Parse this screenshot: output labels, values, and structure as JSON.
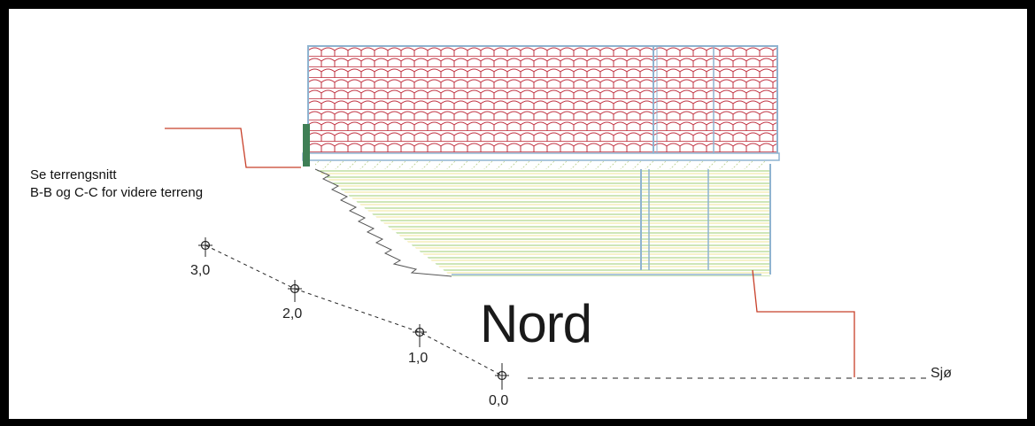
{
  "drawing": {
    "note_line_1": "Se terrengsnitt",
    "note_line_2": "B-B og C-C for videre terreng",
    "view_title": "Nord",
    "sea_label": "Sjø",
    "levels": [
      {
        "label": "3,0",
        "value": 3.0
      },
      {
        "label": "2,0",
        "value": 2.0
      },
      {
        "label": "1,0",
        "value": 1.0
      },
      {
        "label": "0,0",
        "value": 0.0
      }
    ]
  },
  "colors": {
    "roof_tile": "#c0303f",
    "wall_cladding": "#8fbf6a",
    "frame_blue": "#8fb3d0",
    "terrain_line": "#c8402a",
    "dash_line": "#222222",
    "border": "#000000"
  },
  "icons": {
    "level_marker": "crosshair-circle-icon"
  }
}
